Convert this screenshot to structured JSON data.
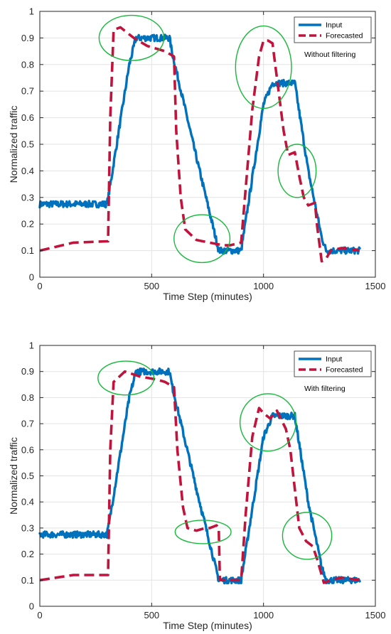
{
  "chart_data": [
    {
      "type": "line",
      "xlabel": "Time Step (minutes)",
      "ylabel": "Normalized traffic",
      "xlim": [
        0,
        1500
      ],
      "ylim": [
        0,
        1
      ],
      "xticks": [
        0,
        500,
        1000,
        1500
      ],
      "yticks": [
        0,
        0.1,
        0.2,
        0.3,
        0.4,
        0.5,
        0.6,
        0.7,
        0.8,
        0.9,
        1
      ],
      "grid": true,
      "legend_position": "top-right",
      "annotation": "Without filtering",
      "series": [
        {
          "name": "Input",
          "color": "#0072BD",
          "style": "solid",
          "noise": 0.012,
          "x": [
            0,
            300,
            310,
            400,
            430,
            580,
            590,
            700,
            800,
            900,
            1000,
            1040,
            1140,
            1200,
            1260,
            1280,
            1430
          ],
          "y": [
            0.275,
            0.275,
            0.32,
            0.8,
            0.9,
            0.9,
            0.85,
            0.45,
            0.1,
            0.1,
            0.65,
            0.73,
            0.73,
            0.4,
            0.15,
            0.1,
            0.1
          ]
        },
        {
          "name": "Forecasted",
          "color": "#C0143C",
          "style": "dashed",
          "x": [
            0,
            150,
            300,
            305,
            315,
            330,
            360,
            420,
            480,
            560,
            600,
            610,
            630,
            650,
            700,
            760,
            820,
            850,
            900,
            915,
            950,
            980,
            1000,
            1020,
            1040,
            1060,
            1090,
            1110,
            1140,
            1160,
            1180,
            1200,
            1230,
            1240,
            1260,
            1280,
            1300,
            1350,
            1430
          ],
          "y": [
            0.1,
            0.13,
            0.135,
            0.135,
            0.6,
            0.93,
            0.94,
            0.9,
            0.87,
            0.85,
            0.83,
            0.55,
            0.3,
            0.18,
            0.14,
            0.13,
            0.12,
            0.12,
            0.13,
            0.28,
            0.63,
            0.83,
            0.89,
            0.89,
            0.88,
            0.75,
            0.55,
            0.46,
            0.47,
            0.38,
            0.3,
            0.27,
            0.28,
            0.19,
            0.06,
            0.07,
            0.1,
            0.11,
            0.1
          ]
        }
      ],
      "circles": [
        {
          "cx": 410,
          "cy": 0.9,
          "rx": 145,
          "ry": 0.085
        },
        {
          "cx": 725,
          "cy": 0.145,
          "rx": 125,
          "ry": 0.09
        },
        {
          "cx": 1000,
          "cy": 0.79,
          "rx": 125,
          "ry": 0.155
        },
        {
          "cx": 1150,
          "cy": 0.4,
          "rx": 85,
          "ry": 0.1
        }
      ]
    },
    {
      "type": "line",
      "xlabel": "Time Step (minutes)",
      "ylabel": "Normalized traffic",
      "xlim": [
        0,
        1500
      ],
      "ylim": [
        0,
        1
      ],
      "xticks": [
        0,
        500,
        1000,
        1500
      ],
      "yticks": [
        0,
        0.1,
        0.2,
        0.3,
        0.4,
        0.5,
        0.6,
        0.7,
        0.8,
        0.9,
        1
      ],
      "grid": true,
      "legend_position": "top-right",
      "annotation": "With filtering",
      "series": [
        {
          "name": "Input",
          "color": "#0072BD",
          "style": "solid",
          "noise": 0.012,
          "x": [
            0,
            300,
            310,
            400,
            430,
            580,
            590,
            700,
            800,
            900,
            1000,
            1040,
            1140,
            1200,
            1260,
            1280,
            1430
          ],
          "y": [
            0.275,
            0.275,
            0.32,
            0.8,
            0.9,
            0.9,
            0.85,
            0.45,
            0.1,
            0.1,
            0.65,
            0.73,
            0.73,
            0.4,
            0.15,
            0.1,
            0.1
          ]
        },
        {
          "name": "Forecasted",
          "color": "#C0143C",
          "style": "dashed",
          "x": [
            0,
            150,
            300,
            305,
            315,
            330,
            380,
            450,
            520,
            560,
            600,
            615,
            640,
            660,
            700,
            740,
            760,
            790,
            800,
            805,
            900,
            920,
            950,
            980,
            1000,
            1030,
            1060,
            1100,
            1120,
            1140,
            1160,
            1190,
            1220,
            1240,
            1270,
            1300,
            1350,
            1430
          ],
          "y": [
            0.1,
            0.12,
            0.12,
            0.12,
            0.6,
            0.86,
            0.9,
            0.88,
            0.87,
            0.86,
            0.84,
            0.6,
            0.38,
            0.3,
            0.29,
            0.3,
            0.3,
            0.31,
            0.3,
            0.1,
            0.1,
            0.35,
            0.65,
            0.76,
            0.74,
            0.72,
            0.75,
            0.68,
            0.6,
            0.45,
            0.3,
            0.25,
            0.23,
            0.18,
            0.09,
            0.1,
            0.11,
            0.1
          ]
        }
      ],
      "circles": [
        {
          "cx": 385,
          "cy": 0.875,
          "rx": 125,
          "ry": 0.065
        },
        {
          "cx": 730,
          "cy": 0.285,
          "rx": 125,
          "ry": 0.045
        },
        {
          "cx": 1020,
          "cy": 0.705,
          "rx": 125,
          "ry": 0.11
        },
        {
          "cx": 1195,
          "cy": 0.27,
          "rx": 110,
          "ry": 0.09
        }
      ]
    }
  ]
}
